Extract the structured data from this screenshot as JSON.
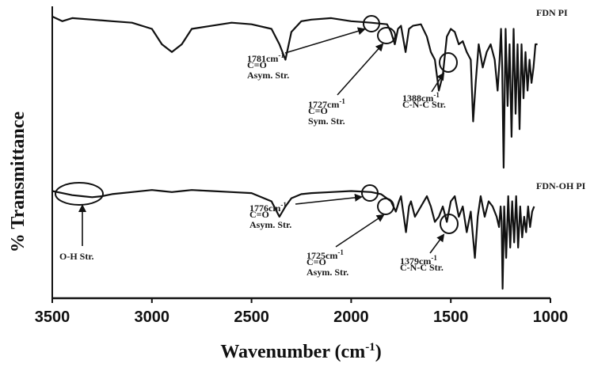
{
  "chart_data": {
    "type": "line",
    "xlabel": "Wavenumber (cm-1)",
    "ylabel": "% Transmittance",
    "xlim": [
      3500,
      1000
    ],
    "x_reversed": true,
    "x_ticks": [
      "3500",
      "3000",
      "2500",
      "2000",
      "1500",
      "1000"
    ],
    "grid": false,
    "series": [
      {
        "name": "FDN PI",
        "x": [
          3500,
          3450,
          3400,
          3300,
          3200,
          3100,
          3000,
          2950,
          2900,
          2850,
          2800,
          2700,
          2600,
          2500,
          2400,
          2360,
          2330,
          2300,
          2250,
          2200,
          2100,
          2000,
          1900,
          1820,
          1800,
          1781,
          1765,
          1750,
          1727,
          1710,
          1690,
          1650,
          1620,
          1600,
          1580,
          1560,
          1540,
          1520,
          1500,
          1480,
          1460,
          1440,
          1420,
          1400,
          1388,
          1375,
          1360,
          1340,
          1320,
          1300,
          1280,
          1265,
          1255,
          1248,
          1242,
          1235,
          1225,
          1215,
          1205,
          1195,
          1185,
          1175,
          1165,
          1155,
          1145,
          1135,
          1125,
          1115,
          1105,
          1095,
          1085,
          1075,
          1065
        ],
        "y": [
          0.02,
          0.05,
          0.03,
          0.04,
          0.05,
          0.06,
          0.1,
          0.2,
          0.25,
          0.2,
          0.1,
          0.08,
          0.06,
          0.07,
          0.1,
          0.2,
          0.3,
          0.12,
          0.05,
          0.04,
          0.03,
          0.05,
          0.06,
          0.07,
          0.12,
          0.2,
          0.1,
          0.08,
          0.25,
          0.1,
          0.08,
          0.07,
          0.15,
          0.25,
          0.3,
          0.5,
          0.4,
          0.15,
          0.1,
          0.12,
          0.2,
          0.18,
          0.25,
          0.3,
          0.7,
          0.45,
          0.2,
          0.35,
          0.25,
          0.2,
          0.3,
          0.5,
          0.3,
          0.1,
          0.35,
          1.0,
          0.1,
          0.6,
          0.2,
          0.8,
          0.1,
          0.65,
          0.2,
          0.75,
          0.2,
          0.55,
          0.25,
          0.5,
          0.3,
          0.45,
          0.35,
          0.2,
          0.2
        ]
      },
      {
        "name": "FDN-OH PI",
        "x": [
          3500,
          3450,
          3400,
          3350,
          3300,
          3250,
          3200,
          3100,
          3000,
          2950,
          2900,
          2850,
          2800,
          2700,
          2600,
          2500,
          2400,
          2360,
          2330,
          2300,
          2250,
          2200,
          2100,
          2000,
          1900,
          1850,
          1800,
          1776,
          1760,
          1750,
          1725,
          1710,
          1700,
          1680,
          1650,
          1620,
          1600,
          1580,
          1560,
          1540,
          1520,
          1500,
          1480,
          1460,
          1440,
          1420,
          1400,
          1379,
          1365,
          1350,
          1330,
          1310,
          1290,
          1270,
          1258,
          1250,
          1245,
          1240,
          1232,
          1222,
          1212,
          1202,
          1192,
          1182,
          1172,
          1162,
          1152,
          1142,
          1132,
          1122,
          1112,
          1102,
          1092,
          1082
        ],
        "y": [
          0.05,
          0.07,
          0.09,
          0.1,
          0.11,
          0.1,
          0.08,
          0.06,
          0.04,
          0.05,
          0.06,
          0.05,
          0.04,
          0.05,
          0.06,
          0.07,
          0.15,
          0.3,
          0.2,
          0.12,
          0.08,
          0.07,
          0.06,
          0.05,
          0.06,
          0.08,
          0.15,
          0.25,
          0.15,
          0.1,
          0.45,
          0.2,
          0.15,
          0.3,
          0.2,
          0.1,
          0.2,
          0.35,
          0.3,
          0.2,
          0.35,
          0.15,
          0.1,
          0.3,
          0.2,
          0.45,
          0.25,
          0.7,
          0.3,
          0.1,
          0.3,
          0.15,
          0.2,
          0.3,
          0.4,
          0.2,
          0.35,
          1.0,
          0.2,
          0.7,
          0.1,
          0.6,
          0.15,
          0.55,
          0.1,
          0.6,
          0.2,
          0.5,
          0.3,
          0.45,
          0.2,
          0.4,
          0.25,
          0.2
        ]
      }
    ],
    "annotations": [
      {
        "series": "FDN PI",
        "peak": "1781",
        "unit": "cm-1",
        "bond": "C=O",
        "mode": "Asym. Str."
      },
      {
        "series": "FDN PI",
        "peak": "1727",
        "unit": "cm-1",
        "bond": "C=O",
        "mode": "Sym. Str."
      },
      {
        "series": "FDN PI",
        "peak": "1388",
        "unit": "cm-1",
        "mode": "C-N-C Str."
      },
      {
        "series": "FDN-OH PI",
        "label": "O-H Str."
      },
      {
        "series": "FDN-OH PI",
        "peak": "1776",
        "unit": "cm-1",
        "bond": "C=O",
        "mode": "Asym. Str."
      },
      {
        "series": "FDN-OH PI",
        "peak": "1725",
        "unit": "cm-1",
        "bond": "C=O",
        "mode": "Asym. Str."
      },
      {
        "series": "FDN-OH PI",
        "peak": "1379",
        "unit": "cm-1",
        "mode": "C-N-C Str."
      }
    ],
    "colors": {
      "line": "#111111",
      "background": "#ffffff"
    }
  }
}
